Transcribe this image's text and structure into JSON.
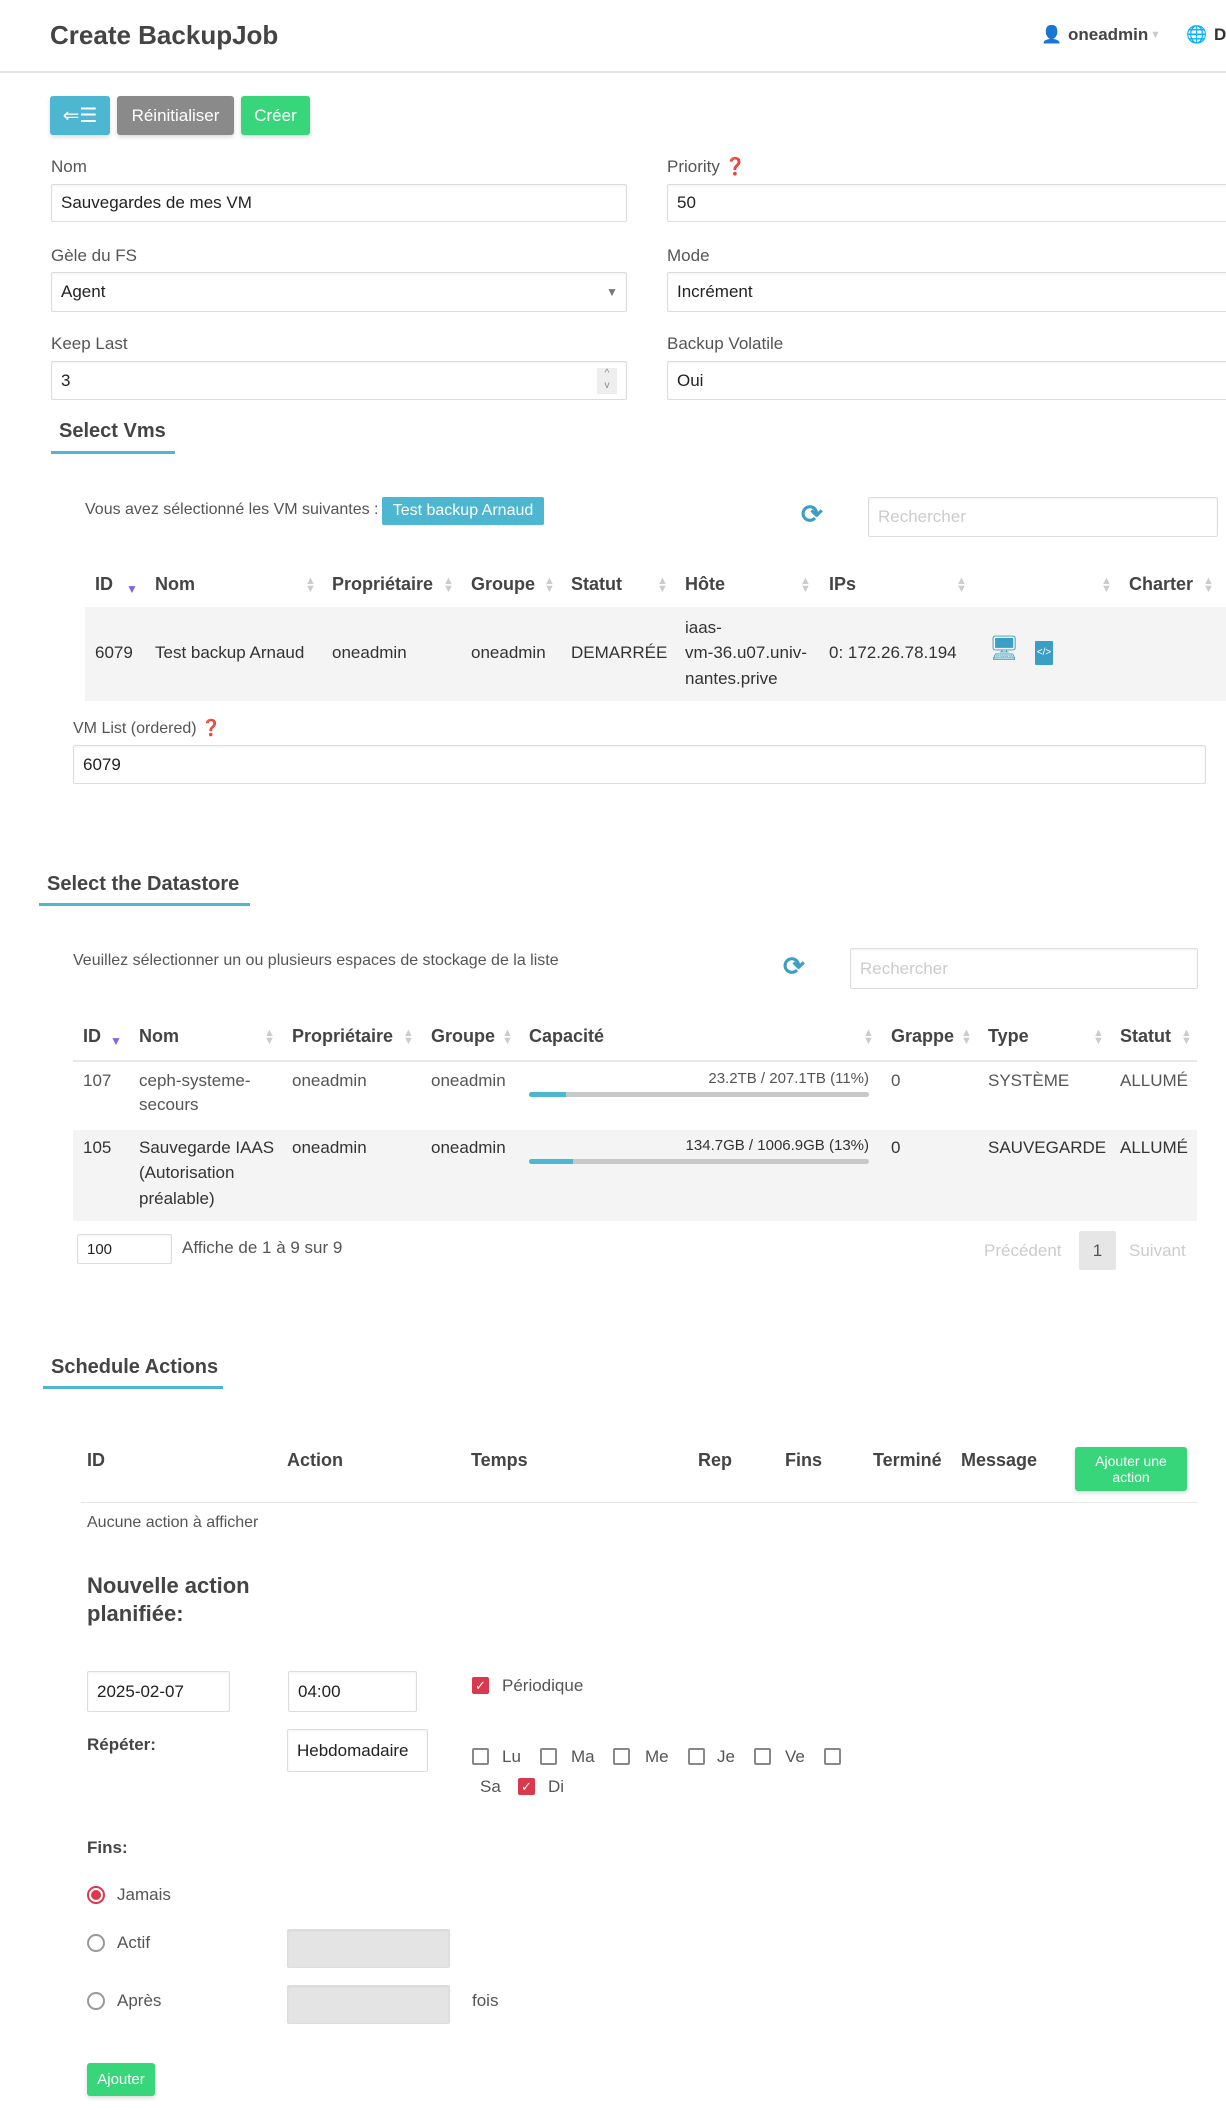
{
  "header": {
    "title": "Create BackupJob",
    "user": "oneadmin",
    "lang_initial": "D"
  },
  "toolbar": {
    "back_icon": "back-list-icon",
    "reset": "Réinitialiser",
    "create": "Créer"
  },
  "form": {
    "nom": {
      "label": "Nom",
      "value": "Sauvegardes de mes VM"
    },
    "priority": {
      "label": "Priority",
      "value": "50"
    },
    "fs_freeze": {
      "label": "Gèle du FS",
      "value": "Agent"
    },
    "mode": {
      "label": "Mode",
      "value": "Incrément"
    },
    "keep_last": {
      "label": "Keep Last",
      "value": "3"
    },
    "backup_volatile": {
      "label": "Backup Volatile",
      "value": "Oui"
    }
  },
  "vms": {
    "title": "Select Vms",
    "selected_label": "Vous avez sélectionné les VM suivantes :",
    "selected_badge": "Test backup Arnaud",
    "search_placeholder": "Rechercher",
    "columns": [
      "ID",
      "Nom",
      "Propriétaire",
      "Groupe",
      "Statut",
      "Hôte",
      "IPs",
      "",
      "Charter"
    ],
    "rows": [
      {
        "id": "6079",
        "nom": "Test backup Arnaud",
        "owner": "oneadmin",
        "group": "oneadmin",
        "status": "DEMARRÉE",
        "host_lines": [
          "iaas-",
          "vm-36.u07.univ-",
          "nantes.prive"
        ],
        "ips": "0: 172.26.78.194"
      }
    ],
    "list_label": "VM List (ordered)",
    "list_value": "6079"
  },
  "datastore": {
    "title": "Select the Datastore",
    "instructions": "Veuillez sélectionner un ou plusieurs espaces de stockage de la liste",
    "search_placeholder": "Rechercher",
    "columns": [
      "ID",
      "Nom",
      "Propriétaire",
      "Groupe",
      "Capacité",
      "Grappe",
      "Type",
      "Statut"
    ],
    "rows": [
      {
        "id": "107",
        "nom_lines": [
          "ceph-systeme-",
          "secours"
        ],
        "owner": "oneadmin",
        "group": "oneadmin",
        "capacity": "23.2TB / 207.1TB (11%)",
        "usage_pct": 11,
        "cluster": "0",
        "type": "SYSTÈME",
        "status": "ALLUMÉ"
      },
      {
        "id": "105",
        "nom_lines": [
          "Sauvegarde IAAS",
          "(Autorisation",
          "préalable)"
        ],
        "owner": "oneadmin",
        "group": "oneadmin",
        "capacity": "134.7GB / 1006.9GB (13%)",
        "usage_pct": 13,
        "cluster": "0",
        "type": "SAUVEGARDE",
        "status": "ALLUMÉ"
      }
    ],
    "page_length": "100",
    "info": "Affiche de 1 à 9 sur 9",
    "prev": "Précédent",
    "page": "1",
    "next": "Suivant"
  },
  "schedule": {
    "title": "Schedule Actions",
    "columns": [
      "ID",
      "Action",
      "Temps",
      "Rep",
      "Fins",
      "Terminé",
      "Message"
    ],
    "add_button": [
      "Ajouter une",
      "action"
    ],
    "empty": "Aucune action à afficher",
    "new_title": [
      "Nouvelle action",
      "planifiée:"
    ],
    "date": "2025-02-07",
    "time": "04:00",
    "periodic_label": "Périodique",
    "periodic": true,
    "repeat_label": "Répéter:",
    "repeat_value": "Hebdomadaire",
    "days": [
      {
        "label": "Lu",
        "checked": false
      },
      {
        "label": "Ma",
        "checked": false
      },
      {
        "label": "Me",
        "checked": false
      },
      {
        "label": "Je",
        "checked": false
      },
      {
        "label": "Ve",
        "checked": false
      },
      {
        "label": "Sa",
        "checked": false
      },
      {
        "label": "Di",
        "checked": true
      }
    ],
    "ends_label": "Fins:",
    "end_options": [
      {
        "label": "Jamais",
        "selected": true
      },
      {
        "label": "Actif",
        "selected": false
      },
      {
        "label": "Après",
        "selected": false
      }
    ],
    "times_label": "fois",
    "submit": "Ajouter"
  },
  "colors": {
    "info": "#4db6d0",
    "gray": "#8a8a8a",
    "success": "#37d67a",
    "danger": "#d9384d"
  }
}
